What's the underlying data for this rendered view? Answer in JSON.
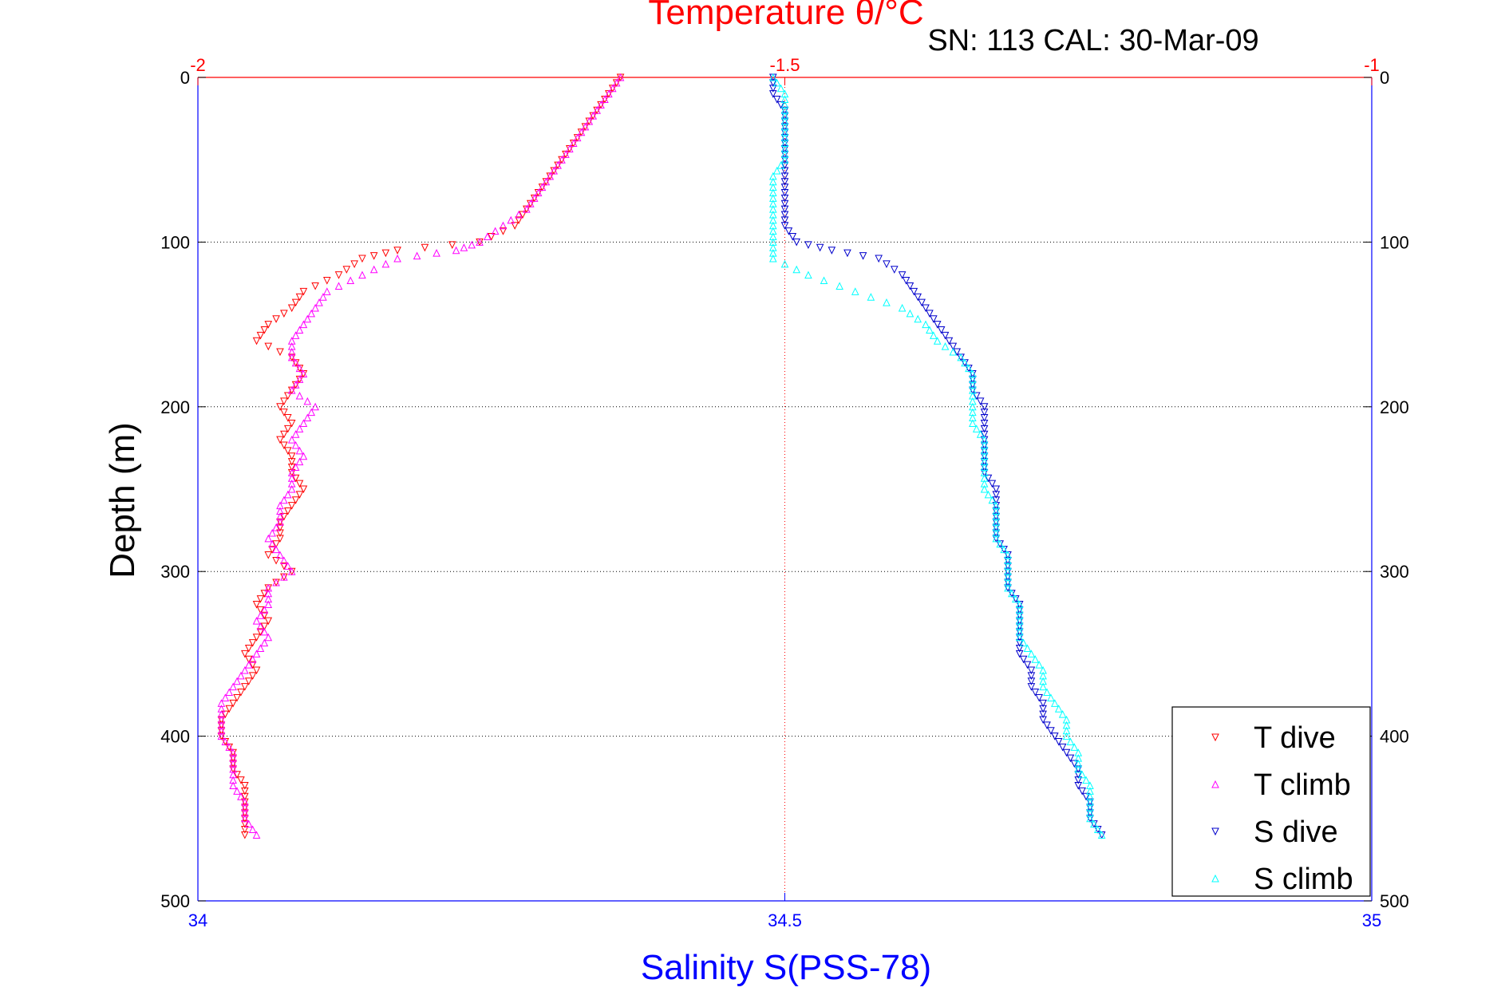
{
  "chart_data": {
    "type": "scatter",
    "title": "Temperature θ/°C",
    "subtitle": "SN: 113  CAL: 30-Mar-09",
    "ylabel": "Depth (m)",
    "xlabel_bottom": "Salinity S(PSS-78)",
    "xlabel_top": "Temperature θ/°C",
    "y_range": [
      0,
      500
    ],
    "y_reversed": true,
    "x_bottom_range": [
      34,
      35
    ],
    "x_top_range": [
      -2,
      -1
    ],
    "y_ticks": [
      "0",
      "100",
      "200",
      "300",
      "400",
      "500"
    ],
    "x_bottom_ticks": [
      "34",
      "34.5",
      "35"
    ],
    "x_top_ticks": [
      "-2",
      "-1.5",
      "-1"
    ],
    "grid": true,
    "legend_position": "bottom-right",
    "colors": {
      "temperature_axis": "#ff0000",
      "salinity_axis": "#0000ff",
      "t_dive": "#ff0000",
      "t_climb": "#ff00ff",
      "s_dive": "#0000cc",
      "s_climb": "#00ffff"
    },
    "series": [
      {
        "name": "T dive",
        "axis": "top",
        "marker": "triangle-down",
        "points": [
          [
            -1.64,
            0
          ],
          [
            -1.65,
            10
          ],
          [
            -1.66,
            20
          ],
          [
            -1.67,
            30
          ],
          [
            -1.68,
            40
          ],
          [
            -1.69,
            50
          ],
          [
            -1.7,
            60
          ],
          [
            -1.71,
            70
          ],
          [
            -1.72,
            80
          ],
          [
            -1.73,
            90
          ],
          [
            -1.76,
            100
          ],
          [
            -1.83,
            105
          ],
          [
            -1.86,
            110
          ],
          [
            -1.88,
            120
          ],
          [
            -1.91,
            130
          ],
          [
            -1.92,
            140
          ],
          [
            -1.94,
            150
          ],
          [
            -1.95,
            160
          ],
          [
            -1.92,
            170
          ],
          [
            -1.91,
            180
          ],
          [
            -1.92,
            190
          ],
          [
            -1.93,
            200
          ],
          [
            -1.92,
            210
          ],
          [
            -1.93,
            220
          ],
          [
            -1.92,
            230
          ],
          [
            -1.92,
            240
          ],
          [
            -1.91,
            250
          ],
          [
            -1.92,
            260
          ],
          [
            -1.93,
            270
          ],
          [
            -1.93,
            280
          ],
          [
            -1.94,
            290
          ],
          [
            -1.92,
            300
          ],
          [
            -1.94,
            310
          ],
          [
            -1.95,
            320
          ],
          [
            -1.94,
            330
          ],
          [
            -1.95,
            340
          ],
          [
            -1.96,
            350
          ],
          [
            -1.95,
            360
          ],
          [
            -1.96,
            370
          ],
          [
            -1.97,
            380
          ],
          [
            -1.98,
            390
          ],
          [
            -1.98,
            400
          ],
          [
            -1.97,
            410
          ],
          [
            -1.97,
            420
          ],
          [
            -1.96,
            430
          ],
          [
            -1.96,
            440
          ],
          [
            -1.96,
            450
          ],
          [
            -1.96,
            460
          ]
        ]
      },
      {
        "name": "T climb",
        "axis": "top",
        "marker": "triangle-up",
        "points": [
          [
            -1.64,
            0
          ],
          [
            -1.65,
            10
          ],
          [
            -1.66,
            20
          ],
          [
            -1.67,
            30
          ],
          [
            -1.68,
            40
          ],
          [
            -1.69,
            50
          ],
          [
            -1.7,
            60
          ],
          [
            -1.71,
            70
          ],
          [
            -1.72,
            80
          ],
          [
            -1.74,
            90
          ],
          [
            -1.76,
            100
          ],
          [
            -1.78,
            105
          ],
          [
            -1.83,
            110
          ],
          [
            -1.86,
            120
          ],
          [
            -1.89,
            130
          ],
          [
            -1.9,
            140
          ],
          [
            -1.91,
            150
          ],
          [
            -1.92,
            160
          ],
          [
            -1.92,
            170
          ],
          [
            -1.91,
            180
          ],
          [
            -1.92,
            190
          ],
          [
            -1.9,
            200
          ],
          [
            -1.91,
            210
          ],
          [
            -1.92,
            220
          ],
          [
            -1.91,
            230
          ],
          [
            -1.92,
            240
          ],
          [
            -1.92,
            250
          ],
          [
            -1.93,
            260
          ],
          [
            -1.93,
            270
          ],
          [
            -1.94,
            280
          ],
          [
            -1.93,
            290
          ],
          [
            -1.92,
            300
          ],
          [
            -1.94,
            310
          ],
          [
            -1.94,
            320
          ],
          [
            -1.95,
            330
          ],
          [
            -1.94,
            340
          ],
          [
            -1.95,
            350
          ],
          [
            -1.96,
            360
          ],
          [
            -1.97,
            370
          ],
          [
            -1.98,
            380
          ],
          [
            -1.98,
            390
          ],
          [
            -1.98,
            400
          ],
          [
            -1.97,
            410
          ],
          [
            -1.97,
            420
          ],
          [
            -1.97,
            430
          ],
          [
            -1.96,
            440
          ],
          [
            -1.96,
            450
          ],
          [
            -1.95,
            460
          ]
        ]
      },
      {
        "name": "S dive",
        "axis": "bottom",
        "marker": "triangle-down",
        "points": [
          [
            34.49,
            0
          ],
          [
            34.49,
            10
          ],
          [
            34.5,
            20
          ],
          [
            34.5,
            30
          ],
          [
            34.5,
            40
          ],
          [
            34.5,
            50
          ],
          [
            34.5,
            60
          ],
          [
            34.5,
            70
          ],
          [
            34.5,
            80
          ],
          [
            34.5,
            90
          ],
          [
            34.51,
            100
          ],
          [
            34.54,
            105
          ],
          [
            34.58,
            110
          ],
          [
            34.6,
            120
          ],
          [
            34.61,
            130
          ],
          [
            34.62,
            140
          ],
          [
            34.63,
            150
          ],
          [
            34.64,
            160
          ],
          [
            34.65,
            170
          ],
          [
            34.66,
            180
          ],
          [
            34.66,
            190
          ],
          [
            34.67,
            200
          ],
          [
            34.67,
            210
          ],
          [
            34.67,
            220
          ],
          [
            34.67,
            230
          ],
          [
            34.67,
            240
          ],
          [
            34.68,
            250
          ],
          [
            34.68,
            260
          ],
          [
            34.68,
            270
          ],
          [
            34.68,
            280
          ],
          [
            34.69,
            290
          ],
          [
            34.69,
            300
          ],
          [
            34.69,
            310
          ],
          [
            34.7,
            320
          ],
          [
            34.7,
            330
          ],
          [
            34.7,
            340
          ],
          [
            34.7,
            350
          ],
          [
            34.71,
            360
          ],
          [
            34.71,
            370
          ],
          [
            34.72,
            380
          ],
          [
            34.72,
            390
          ],
          [
            34.73,
            400
          ],
          [
            34.74,
            410
          ],
          [
            34.75,
            420
          ],
          [
            34.75,
            430
          ],
          [
            34.76,
            440
          ],
          [
            34.76,
            450
          ],
          [
            34.77,
            460
          ]
        ]
      },
      {
        "name": "S climb",
        "axis": "bottom",
        "marker": "triangle-up",
        "points": [
          [
            34.49,
            0
          ],
          [
            34.5,
            10
          ],
          [
            34.5,
            20
          ],
          [
            34.5,
            30
          ],
          [
            34.5,
            40
          ],
          [
            34.5,
            50
          ],
          [
            34.49,
            60
          ],
          [
            34.49,
            70
          ],
          [
            34.49,
            80
          ],
          [
            34.49,
            90
          ],
          [
            34.49,
            100
          ],
          [
            34.49,
            110
          ],
          [
            34.52,
            120
          ],
          [
            34.56,
            130
          ],
          [
            34.6,
            140
          ],
          [
            34.62,
            150
          ],
          [
            34.63,
            160
          ],
          [
            34.65,
            170
          ],
          [
            34.66,
            180
          ],
          [
            34.66,
            190
          ],
          [
            34.66,
            200
          ],
          [
            34.66,
            210
          ],
          [
            34.67,
            220
          ],
          [
            34.67,
            230
          ],
          [
            34.67,
            240
          ],
          [
            34.67,
            250
          ],
          [
            34.68,
            260
          ],
          [
            34.68,
            270
          ],
          [
            34.68,
            280
          ],
          [
            34.69,
            290
          ],
          [
            34.69,
            300
          ],
          [
            34.69,
            310
          ],
          [
            34.7,
            320
          ],
          [
            34.7,
            330
          ],
          [
            34.7,
            340
          ],
          [
            34.71,
            350
          ],
          [
            34.72,
            360
          ],
          [
            34.72,
            370
          ],
          [
            34.73,
            380
          ],
          [
            34.74,
            390
          ],
          [
            34.74,
            400
          ],
          [
            34.75,
            410
          ],
          [
            34.75,
            420
          ],
          [
            34.76,
            430
          ],
          [
            34.76,
            440
          ],
          [
            34.76,
            450
          ],
          [
            34.77,
            460
          ]
        ]
      }
    ]
  }
}
